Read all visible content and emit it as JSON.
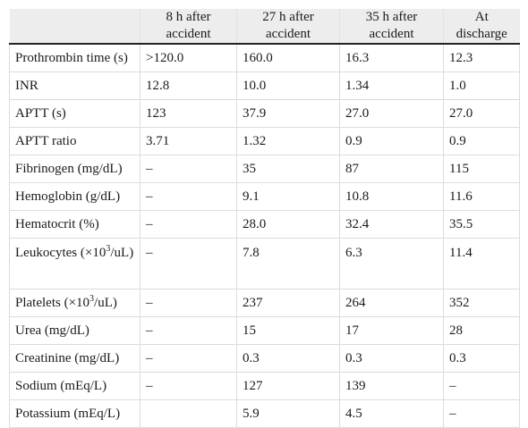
{
  "table": {
    "headers": [
      "",
      "8 h after accident",
      "27 h after accident",
      "35 h after accident",
      "At discharge"
    ],
    "rows": [
      {
        "label": "Prothrombin time (s)",
        "values": [
          ">120.0",
          "160.0",
          "16.3",
          "12.3"
        ]
      },
      {
        "label": "INR",
        "values": [
          "12.8",
          "10.0",
          "1.34",
          "1.0"
        ]
      },
      {
        "label": "APTT (s)",
        "values": [
          "123",
          "37.9",
          "27.0",
          "27.0"
        ]
      },
      {
        "label": "APTT ratio",
        "values": [
          "3.71",
          "1.32",
          "0.9",
          "0.9"
        ]
      },
      {
        "label": "Fibrinogen (mg/dL)",
        "values": [
          "–",
          "35",
          "87",
          "115"
        ]
      },
      {
        "label": "Hemoglobin (g/dL)",
        "values": [
          "–",
          "9.1",
          "10.8",
          "11.6"
        ]
      },
      {
        "label": "Hematocrit (%)",
        "values": [
          "–",
          "28.0",
          "32.4",
          "35.5"
        ]
      },
      {
        "label_parts": [
          "Leukocytes (×10",
          "3",
          "/uL)"
        ],
        "values": [
          "–",
          "7.8",
          "6.3",
          "11.4"
        ]
      },
      {
        "label_parts": [
          "Platelets (×10",
          "3",
          "/uL)"
        ],
        "values": [
          "–",
          "237",
          "264",
          "352"
        ]
      },
      {
        "label": "Urea (mg/dL)",
        "values": [
          "–",
          "15",
          "17",
          "28"
        ]
      },
      {
        "label": "Creatinine (mg/dL)",
        "values": [
          "–",
          "0.3",
          "0.3",
          "0.3"
        ]
      },
      {
        "label": "Sodium (mEq/L)",
        "values": [
          "–",
          "127",
          "139",
          "–"
        ]
      },
      {
        "label": "Potassium (mEq/L)",
        "values": [
          "",
          "5.9",
          "4.5",
          "–"
        ]
      }
    ]
  }
}
